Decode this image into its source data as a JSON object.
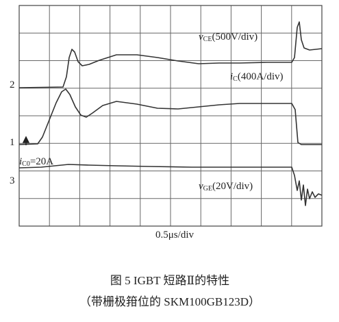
{
  "traces": {
    "vce": {
      "symbol": "v",
      "subscript": "CE",
      "scale": "(500V/div)"
    },
    "ic": {
      "symbol": "i",
      "subscript": "C",
      "scale": "(400A/div)"
    },
    "ic0": {
      "symbol": "i",
      "subscript": "C0",
      "value": "=20A"
    },
    "vge": {
      "symbol": "v",
      "subscript": "GE",
      "scale": "(20V/div)"
    }
  },
  "channels": [
    "2",
    "1",
    "3"
  ],
  "time_scale": "0.5μs/div",
  "caption": {
    "line1": "图 5    IGBT 短路Ⅱ的特性",
    "line2": "（带栅极箝位的 SKM100GB123D）"
  }
}
